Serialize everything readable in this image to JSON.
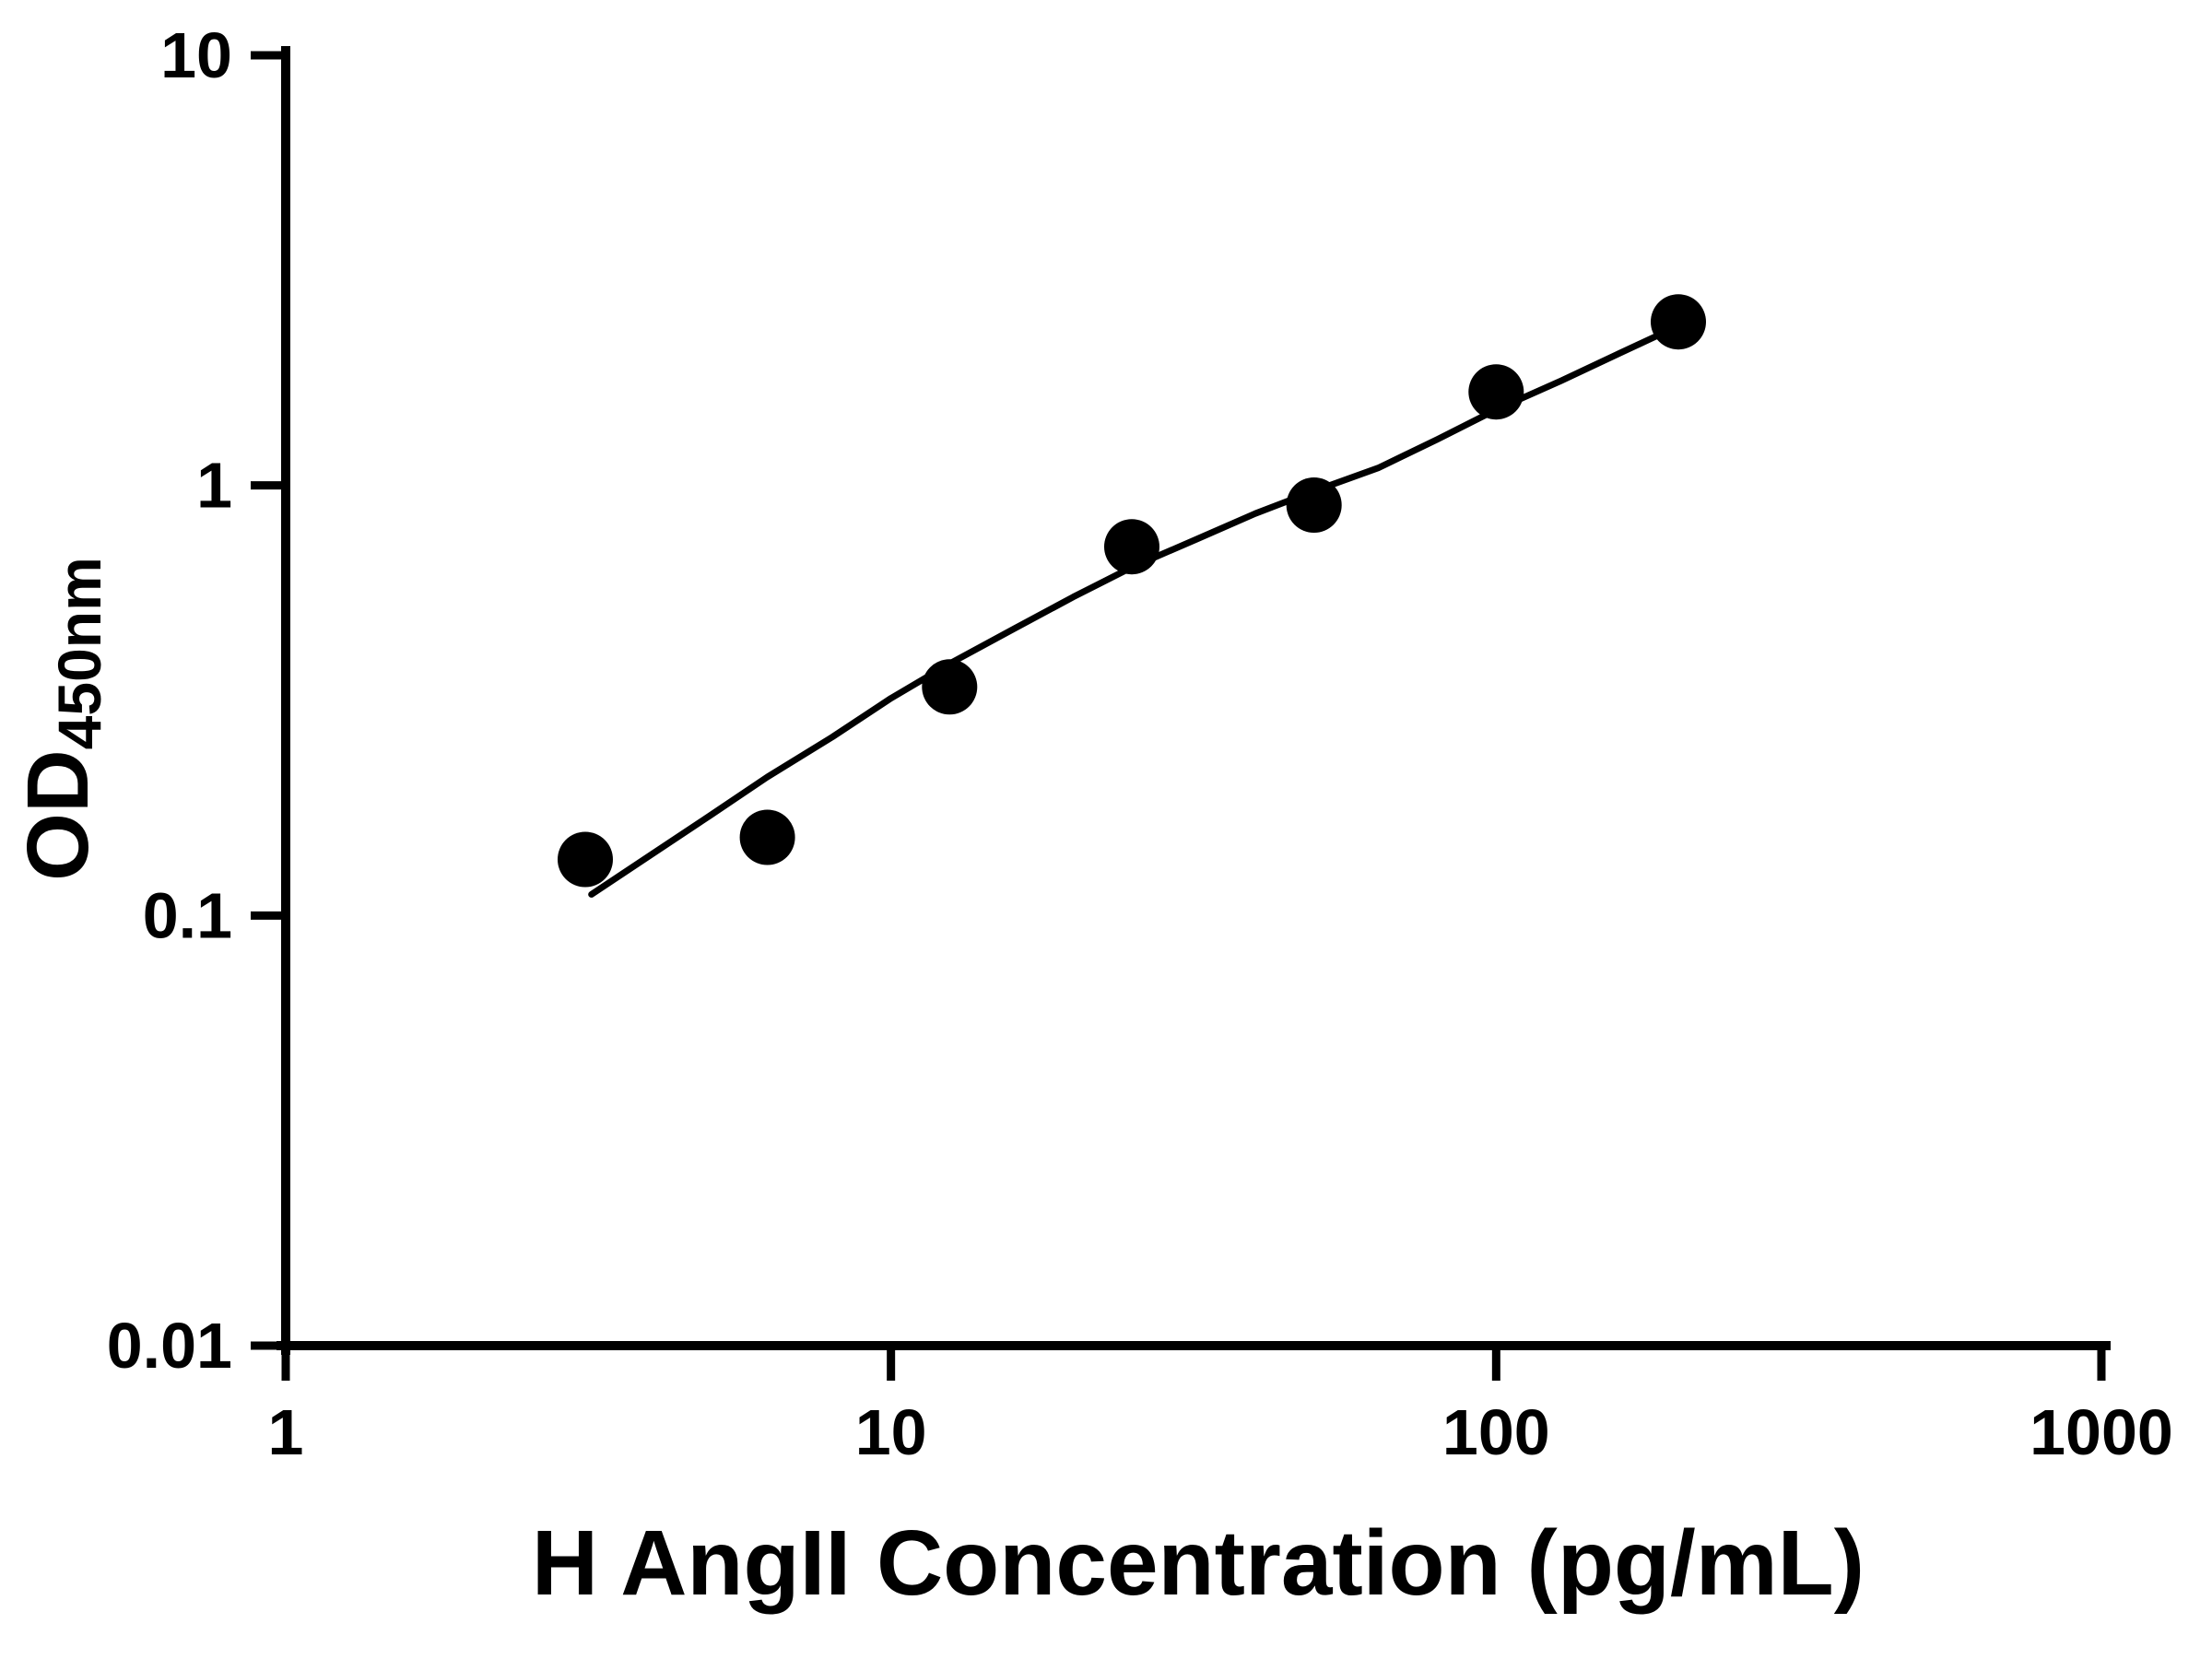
{
  "figure": {
    "background_color": "#ffffff",
    "axis_color": "#000000",
    "point_color": "#000000",
    "line_color": "#000000"
  },
  "chart_data": {
    "type": "scatter",
    "title": "",
    "xlabel": "H AngII Concentration (pg/mL)",
    "ylabel_main": "OD",
    "ylabel_sub": "450nm",
    "x_scale": "log",
    "y_scale": "log",
    "xlim": [
      1,
      1000
    ],
    "ylim": [
      0.01,
      10
    ],
    "grid": false,
    "legend": false,
    "x_tick_values": [
      1,
      10,
      100,
      1000
    ],
    "x_tick_labels": [
      "1",
      "10",
      "100",
      "1000"
    ],
    "y_tick_values": [
      10,
      1,
      0.1,
      0.01
    ],
    "y_tick_labels": [
      "10",
      "1",
      "0.1",
      "0.01"
    ],
    "points": {
      "x": [
        3.125,
        6.25,
        12.5,
        25,
        50,
        100,
        200
      ],
      "y": [
        0.135,
        0.152,
        0.34,
        0.72,
        0.9,
        1.65,
        2.4
      ]
    },
    "fit_curve": {
      "x": [
        3.2,
        4,
        5,
        6.25,
        8,
        10,
        12.5,
        16,
        20,
        25,
        32,
        40,
        50,
        64,
        80,
        100,
        128,
        160,
        200
      ],
      "y": [
        0.112,
        0.138,
        0.17,
        0.21,
        0.26,
        0.32,
        0.385,
        0.465,
        0.55,
        0.645,
        0.75,
        0.86,
        0.97,
        1.1,
        1.28,
        1.5,
        1.75,
        2.03,
        2.35
      ]
    },
    "marker_radius": 30
  }
}
